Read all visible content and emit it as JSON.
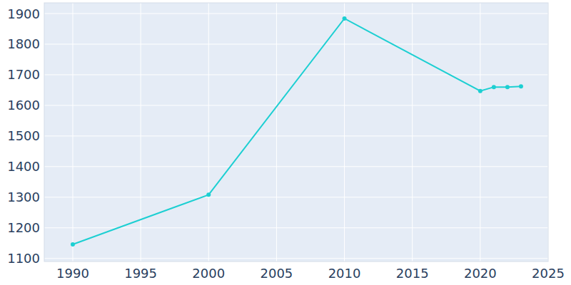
{
  "chart_data": {
    "type": "line",
    "x": [
      1990,
      2000,
      2010,
      2020,
      2021,
      2022,
      2023
    ],
    "values": [
      1146,
      1308,
      1884,
      1647,
      1660,
      1660,
      1662
    ],
    "color": "#1ccfd2",
    "marker": "circle",
    "xlim": [
      1987.9,
      2025
    ],
    "xticks": [
      1990,
      1995,
      2000,
      2005,
      2010,
      2015,
      2020,
      2025
    ],
    "ylim": [
      1090,
      1935
    ],
    "yticks": [
      1100,
      1200,
      1300,
      1400,
      1500,
      1600,
      1700,
      1800,
      1900
    ],
    "grid": true
  }
}
